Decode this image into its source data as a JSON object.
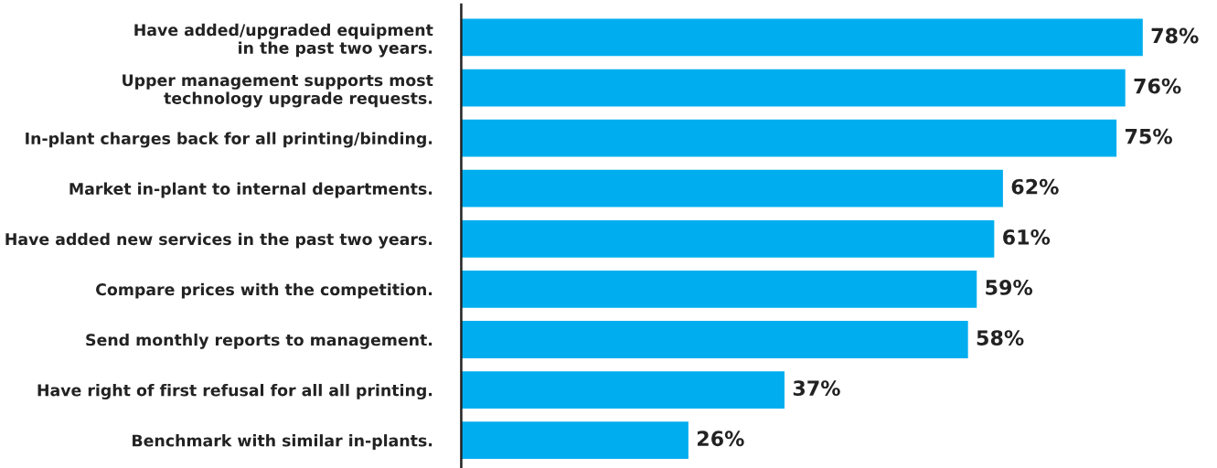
{
  "chart_data": {
    "type": "bar",
    "orientation": "horizontal",
    "categories": [
      "Have added/upgraded equipment\nin the past two years.",
      "Upper management supports most\ntechnology upgrade requests.",
      "In-plant charges back for all printing/binding.",
      "Market in-plant to internal departments.",
      "Have added new services in the past two years.",
      "Compare prices with the competition.",
      "Send monthly reports to management.",
      "Have right of first refusal for all all printing.",
      "Benchmark with similar in-plants."
    ],
    "values": [
      78,
      76,
      75,
      62,
      61,
      59,
      58,
      37,
      26
    ],
    "value_labels": [
      "78%",
      "76%",
      "75%",
      "62%",
      "61%",
      "59%",
      "58%",
      "37%",
      "26%"
    ],
    "color": "#00aeef",
    "grid": false,
    "legend": false,
    "tick_labels": "y"
  }
}
